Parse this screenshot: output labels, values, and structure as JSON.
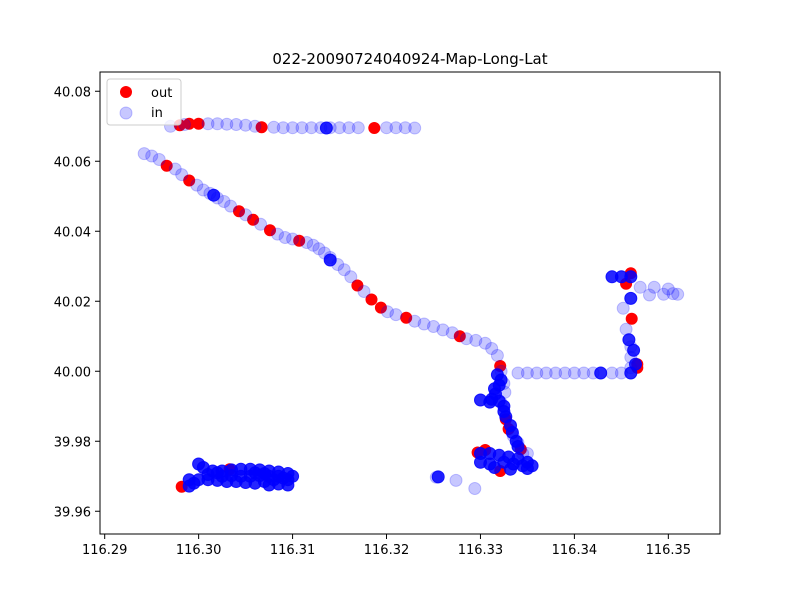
{
  "colors": {
    "out": "#ff0000",
    "in": "#0000ff",
    "axes": "#000000",
    "legend_border": "#cccccc"
  },
  "chart_data": {
    "type": "scatter",
    "title": "022-20090724040924-Map-Long-Lat",
    "xlabel": "",
    "ylabel": "",
    "xlim": [
      116.2895,
      116.3555
    ],
    "ylim": [
      39.9535,
      40.0855
    ],
    "xticks": [
      116.29,
      116.3,
      116.31,
      116.32,
      116.33,
      116.34,
      116.35
    ],
    "xtick_labels": [
      "116.29",
      "116.30",
      "116.31",
      "116.32",
      "116.33",
      "116.34",
      "116.35"
    ],
    "yticks": [
      39.96,
      39.98,
      40.0,
      40.02,
      40.04,
      40.06,
      40.08
    ],
    "ytick_labels": [
      "39.96",
      "39.98",
      "40.00",
      "40.02",
      "40.04",
      "40.06",
      "40.08"
    ],
    "grid": false,
    "legend": {
      "position": "top-left",
      "entries": [
        "out",
        "in"
      ]
    },
    "series": [
      {
        "name": "out",
        "color": "#ff0000",
        "alpha": 1.0,
        "points": [
          [
            116.298,
            40.0703
          ],
          [
            116.299,
            40.0707
          ],
          [
            116.3,
            40.0707
          ],
          [
            116.3067,
            40.0697
          ],
          [
            116.3187,
            40.0695
          ],
          [
            116.2966,
            40.0587
          ],
          [
            116.299,
            40.0545
          ],
          [
            116.3043,
            40.0457
          ],
          [
            116.3058,
            40.0433
          ],
          [
            116.3076,
            40.0403
          ],
          [
            116.3107,
            40.0373
          ],
          [
            116.3169,
            40.0245
          ],
          [
            116.3184,
            40.0205
          ],
          [
            116.3194,
            40.0182
          ],
          [
            116.3221,
            40.0153
          ],
          [
            116.3278,
            40.01
          ],
          [
            116.3321,
            40.0015
          ],
          [
            116.3327,
            39.9863
          ],
          [
            116.333,
            39.9835
          ],
          [
            116.3343,
            39.9777
          ],
          [
            116.3297,
            39.9768
          ],
          [
            116.3305,
            39.9775
          ],
          [
            116.3321,
            39.9715
          ],
          [
            116.3455,
            40.025
          ],
          [
            116.346,
            40.028
          ],
          [
            116.3461,
            40.015
          ],
          [
            116.3467,
            40.001
          ],
          [
            116.3467,
            40.002
          ],
          [
            116.3033,
            39.972
          ],
          [
            116.2982,
            39.967
          ]
        ]
      },
      {
        "name": "in",
        "color": "#0000ff",
        "alpha": 0.22,
        "points": [
          [
            116.297,
            40.07
          ],
          [
            116.2985,
            40.0705
          ],
          [
            116.301,
            40.0707
          ],
          [
            116.302,
            40.0707
          ],
          [
            116.303,
            40.0706
          ],
          [
            116.304,
            40.0705
          ],
          [
            116.305,
            40.0703
          ],
          [
            116.306,
            40.07
          ],
          [
            116.308,
            40.0697
          ],
          [
            116.309,
            40.0696
          ],
          [
            116.31,
            40.0696
          ],
          [
            116.311,
            40.0696
          ],
          [
            116.312,
            40.0696
          ],
          [
            116.313,
            40.0696
          ],
          [
            116.314,
            40.0696
          ],
          [
            116.315,
            40.0696
          ],
          [
            116.316,
            40.0696
          ],
          [
            116.317,
            40.0696
          ],
          [
            116.32,
            40.0696
          ],
          [
            116.321,
            40.0696
          ],
          [
            116.322,
            40.0696
          ],
          [
            116.323,
            40.0695
          ],
          [
            116.2942,
            40.0622
          ],
          [
            116.295,
            40.0615
          ],
          [
            116.2958,
            40.0605
          ],
          [
            116.2975,
            40.0578
          ],
          [
            116.2982,
            40.0562
          ],
          [
            116.2998,
            40.0532
          ],
          [
            116.3005,
            40.0518
          ],
          [
            116.3012,
            40.0508
          ],
          [
            116.302,
            40.0495
          ],
          [
            116.3027,
            40.0485
          ],
          [
            116.3034,
            40.0472
          ],
          [
            116.305,
            40.0447
          ],
          [
            116.3066,
            40.042
          ],
          [
            116.3084,
            40.0392
          ],
          [
            116.3092,
            40.0382
          ],
          [
            116.31,
            40.0378
          ],
          [
            116.3115,
            40.0368
          ],
          [
            116.3122,
            40.036
          ],
          [
            116.3128,
            40.035
          ],
          [
            116.3134,
            40.0338
          ],
          [
            116.314,
            40.0325
          ],
          [
            116.3148,
            40.0305
          ],
          [
            116.3155,
            40.029
          ],
          [
            116.3162,
            40.027
          ],
          [
            116.3176,
            40.0228
          ],
          [
            116.3201,
            40.017
          ],
          [
            116.321,
            40.0162
          ],
          [
            116.323,
            40.0143
          ],
          [
            116.324,
            40.0135
          ],
          [
            116.325,
            40.0128
          ],
          [
            116.326,
            40.0118
          ],
          [
            116.327,
            40.011
          ],
          [
            116.3285,
            40.0093
          ],
          [
            116.3295,
            40.0088
          ],
          [
            116.3305,
            40.008
          ],
          [
            116.3312,
            40.0065
          ],
          [
            116.3318,
            40.0045
          ],
          [
            116.3322,
            40.0
          ],
          [
            116.3325,
            39.9965
          ],
          [
            116.3326,
            39.994
          ],
          [
            116.3322,
            39.991
          ],
          [
            116.3335,
            39.9815
          ],
          [
            116.334,
            39.9795
          ],
          [
            116.3345,
            39.9765
          ],
          [
            116.335,
            39.9765
          ],
          [
            116.334,
            39.9995
          ],
          [
            116.335,
            39.9995
          ],
          [
            116.336,
            39.9995
          ],
          [
            116.337,
            39.9995
          ],
          [
            116.338,
            39.9995
          ],
          [
            116.339,
            39.9995
          ],
          [
            116.34,
            39.9995
          ],
          [
            116.341,
            39.9995
          ],
          [
            116.342,
            39.9995
          ],
          [
            116.344,
            39.9995
          ],
          [
            116.345,
            39.9995
          ],
          [
            116.346,
            40.001
          ],
          [
            116.346,
            40.004
          ],
          [
            116.346,
            40.007
          ],
          [
            116.3455,
            40.012
          ],
          [
            116.3452,
            40.018
          ],
          [
            116.347,
            40.024
          ],
          [
            116.3485,
            40.024
          ],
          [
            116.35,
            40.0235
          ],
          [
            116.351,
            40.022
          ],
          [
            116.348,
            40.0218
          ],
          [
            116.3495,
            40.022
          ],
          [
            116.3505,
            40.0222
          ],
          [
            116.3253,
            39.9697
          ],
          [
            116.3274,
            39.9688
          ],
          [
            116.3294,
            39.9665
          ]
        ]
      },
      {
        "name": "",
        "color": "#0000ff",
        "alpha": 0.85,
        "points": [
          [
            116.3136,
            40.0695
          ],
          [
            116.3016,
            40.0503
          ],
          [
            116.314,
            40.0318
          ],
          [
            116.346,
            40.0208
          ],
          [
            116.3428,
            39.9995
          ],
          [
            116.346,
            39.9995
          ],
          [
            116.3465,
            40.002
          ],
          [
            116.3463,
            40.006
          ],
          [
            116.3458,
            40.009
          ],
          [
            116.346,
            40.027
          ],
          [
            116.344,
            40.027
          ],
          [
            116.345,
            40.027
          ],
          [
            116.3318,
            39.999
          ],
          [
            116.3322,
            39.9975
          ],
          [
            116.332,
            39.996
          ],
          [
            116.3315,
            39.995
          ],
          [
            116.3316,
            39.9935
          ],
          [
            116.3312,
            39.992
          ],
          [
            116.33,
            39.9918
          ],
          [
            116.331,
            39.9912
          ],
          [
            116.332,
            39.9915
          ],
          [
            116.3325,
            39.99
          ],
          [
            116.3325,
            39.9885
          ],
          [
            116.3327,
            39.987
          ],
          [
            116.3332,
            39.9845
          ],
          [
            116.3334,
            39.9825
          ],
          [
            116.3338,
            39.98
          ],
          [
            116.334,
            39.9785
          ],
          [
            116.33,
            39.9765
          ],
          [
            116.331,
            39.9765
          ],
          [
            116.332,
            39.976
          ],
          [
            116.333,
            39.9755
          ],
          [
            116.334,
            39.975
          ],
          [
            116.335,
            39.974
          ],
          [
            116.3355,
            39.973
          ],
          [
            116.33,
            39.974
          ],
          [
            116.331,
            39.9735
          ],
          [
            116.3325,
            39.974
          ],
          [
            116.3335,
            39.9735
          ],
          [
            116.3345,
            39.973
          ],
          [
            116.335,
            39.9722
          ],
          [
            116.3315,
            39.9725
          ],
          [
            116.3332,
            39.972
          ],
          [
            116.3255,
            39.9698
          ],
          [
            116.3,
            39.9735
          ],
          [
            116.3005,
            39.9725
          ],
          [
            116.3015,
            39.9715
          ],
          [
            116.3025,
            39.9715
          ],
          [
            116.3035,
            39.9718
          ],
          [
            116.3045,
            39.972
          ],
          [
            116.3055,
            39.972
          ],
          [
            116.3065,
            39.9718
          ],
          [
            116.3075,
            39.9715
          ],
          [
            116.3085,
            39.9712
          ],
          [
            116.3095,
            39.9708
          ],
          [
            116.31,
            39.97
          ],
          [
            116.309,
            39.9695
          ],
          [
            116.308,
            39.969
          ],
          [
            116.307,
            39.9685
          ],
          [
            116.306,
            39.968
          ],
          [
            116.305,
            39.9682
          ],
          [
            116.304,
            39.9685
          ],
          [
            116.303,
            39.9685
          ],
          [
            116.302,
            39.9688
          ],
          [
            116.301,
            39.969
          ],
          [
            116.3,
            39.969
          ],
          [
            116.299,
            39.969
          ],
          [
            116.2995,
            39.968
          ],
          [
            116.299,
            39.9672
          ],
          [
            116.3025,
            39.97
          ],
          [
            116.3035,
            39.9702
          ],
          [
            116.3045,
            39.97
          ],
          [
            116.3055,
            39.97
          ],
          [
            116.3065,
            39.9702
          ],
          [
            116.3075,
            39.97
          ],
          [
            116.3085,
            39.97
          ],
          [
            116.3095,
            39.969
          ],
          [
            116.3085,
            39.9678
          ],
          [
            116.3075,
            39.9675
          ],
          [
            116.3095,
            39.9675
          ],
          [
            116.301,
            39.9705
          ],
          [
            116.302,
            39.971
          ],
          [
            116.307,
            39.9708
          ],
          [
            116.306,
            39.971
          ]
        ]
      }
    ]
  }
}
